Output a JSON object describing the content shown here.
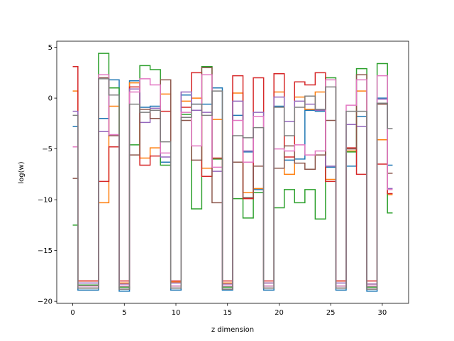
{
  "chart_data": {
    "type": "line",
    "step": "mid",
    "xlabel": "z dimension",
    "ylabel": "log(w)",
    "xlim": [
      -1.55,
      32.55
    ],
    "ylim": [
      -20.2,
      5.6
    ],
    "xticks": [
      0,
      5,
      10,
      15,
      20,
      25,
      30
    ],
    "yticks": [
      5,
      0,
      -5,
      -10,
      -15,
      -20
    ],
    "x": [
      0,
      1,
      2,
      3,
      4,
      5,
      6,
      7,
      8,
      9,
      10,
      11,
      12,
      13,
      14,
      15,
      16,
      17,
      18,
      19,
      20,
      21,
      22,
      23,
      24,
      25,
      26,
      27,
      28,
      29,
      30,
      31
    ],
    "series": [
      {
        "color": "#1f77b4",
        "values": [
          -2.8,
          -18.9,
          -18.9,
          -2.0,
          1.8,
          -19.0,
          1.7,
          -0.9,
          -0.8,
          -6.3,
          -18.9,
          0.3,
          -0.6,
          -0.6,
          1.0,
          -18.9,
          -1.7,
          -5.3,
          -9.0,
          -18.9,
          -0.8,
          -6.1,
          -6.0,
          -1.2,
          -1.3,
          -6.8,
          -18.9,
          -6.7,
          -1.8,
          -19.0,
          0.0,
          -6.6
        ]
      },
      {
        "color": "#ff7f0e",
        "values": [
          0.7,
          -18.0,
          -18.0,
          -10.3,
          -0.8,
          -18.2,
          1.5,
          -5.9,
          -4.9,
          0.4,
          -18.1,
          -0.3,
          0.0,
          -6.9,
          -2.1,
          -18.2,
          0.5,
          -9.3,
          -8.9,
          -18.2,
          0.6,
          -7.5,
          0.1,
          -1.1,
          0.6,
          -8.0,
          -18.0,
          -5.2,
          0.7,
          -18.3,
          -4.1,
          -9.5
        ]
      },
      {
        "color": "#2ca02c",
        "values": [
          -12.5,
          -18.4,
          -18.4,
          4.4,
          1.0,
          -18.6,
          -4.6,
          3.2,
          2.8,
          -6.6,
          -18.5,
          -1.6,
          -10.9,
          3.1,
          -6.0,
          -18.6,
          -9.9,
          -11.8,
          -9.3,
          -18.5,
          -10.8,
          -9.0,
          -10.3,
          -9.0,
          -11.9,
          2.0,
          -18.5,
          -5.3,
          2.9,
          -18.6,
          3.4,
          -11.3
        ]
      },
      {
        "color": "#d62728",
        "values": [
          3.1,
          -18.0,
          -18.0,
          -8.2,
          -4.8,
          -18.0,
          1.1,
          -6.6,
          -5.7,
          -1.3,
          -18.0,
          -0.9,
          2.5,
          -7.7,
          -5.9,
          -18.0,
          2.2,
          -9.9,
          2.0,
          -18.0,
          2.4,
          -5.8,
          1.6,
          1.3,
          2.5,
          -8.2,
          -18.0,
          -4.9,
          -7.5,
          -18.0,
          -6.5,
          -9.4
        ]
      },
      {
        "color": "#9467bd",
        "values": [
          -1.3,
          -18.2,
          -18.2,
          -3.3,
          -3.6,
          -18.3,
          0.9,
          -2.4,
          -1.0,
          -5.8,
          -18.2,
          0.6,
          -1.2,
          -1.4,
          -7.2,
          -18.3,
          -0.3,
          -5.2,
          -1.4,
          -18.2,
          0.1,
          -2.3,
          -0.3,
          -0.6,
          -1.2,
          -6.7,
          -18.2,
          -2.6,
          -2.8,
          -18.3,
          -0.1,
          -8.9
        ]
      },
      {
        "color": "#8c564b",
        "values": [
          -7.9,
          -18.7,
          -18.7,
          2.0,
          -3.7,
          -18.8,
          -5.6,
          -1.1,
          -2.0,
          1.8,
          -18.7,
          -2.2,
          -6.1,
          3.0,
          -10.3,
          -18.8,
          -6.3,
          -9.8,
          -6.7,
          -18.7,
          -6.9,
          -4.7,
          -6.4,
          -7.0,
          -5.6,
          -2.2,
          -18.7,
          -5.0,
          2.3,
          -18.8,
          -0.6,
          -7.4
        ]
      },
      {
        "color": "#e377c2",
        "values": [
          -4.8,
          -18.5,
          -18.5,
          2.3,
          -3.6,
          -18.5,
          0.6,
          1.9,
          1.3,
          -5.4,
          -18.5,
          -1.4,
          -4.7,
          2.3,
          -6.8,
          -18.5,
          -2.2,
          -6.3,
          -1.8,
          -18.5,
          -5.0,
          -5.2,
          -4.6,
          -5.6,
          -5.2,
          1.8,
          -18.5,
          -0.7,
          1.8,
          -18.5,
          2.2,
          -9.0
        ]
      },
      {
        "color": "#7f7f7f",
        "values": [
          -1.7,
          -18.7,
          -18.7,
          1.9,
          0.3,
          -18.8,
          -0.6,
          -1.4,
          -1.2,
          -4.3,
          -18.7,
          -1.9,
          -0.6,
          -1.7,
          0.7,
          -18.8,
          -3.7,
          -3.9,
          -2.9,
          -18.7,
          -0.9,
          -3.7,
          -0.9,
          0.2,
          -1.1,
          1.1,
          -18.7,
          -1.3,
          -1.3,
          -18.8,
          -0.5,
          -3.0
        ]
      }
    ]
  }
}
